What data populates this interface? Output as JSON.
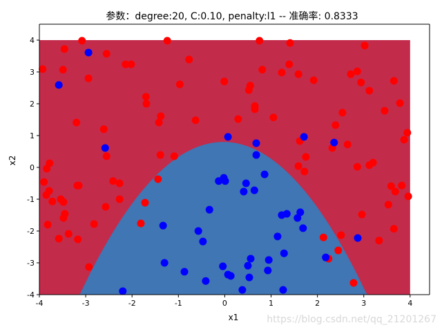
{
  "chart_data": {
    "type": "scatter",
    "title": "参数：degree:20, C:0.10, penalty:l1 -- 准确率: 0.8333",
    "xlabel": "x1",
    "ylabel": "x2",
    "xlim": [
      -4,
      4.42
    ],
    "ylim": [
      -4,
      4.5
    ],
    "xticks": [
      "-4",
      "-3",
      "-2",
      "-1",
      "0",
      "1",
      "2",
      "3",
      "4"
    ],
    "yticks": [
      "-4",
      "-3",
      "-2",
      "-1",
      "0",
      "1",
      "2",
      "3",
      "4"
    ],
    "grid": false,
    "background_regions": {
      "region_extent": [
        -4,
        4
      ],
      "outer_color": "#c32b4b",
      "inner_color": "#3f76b3"
    },
    "series": [
      {
        "color": "#ff0000",
        "points": [
          [
            -3.08,
            3.98
          ],
          [
            -1.24,
            3.98
          ],
          [
            -3.46,
            3.72
          ],
          [
            -2.55,
            3.57
          ],
          [
            -2.14,
            3.24
          ],
          [
            -2.02,
            3.24
          ],
          [
            -0.77,
            3.39
          ],
          [
            -3.93,
            3.09
          ],
          [
            -3.49,
            3.07
          ],
          [
            -2.94,
            2.8
          ],
          [
            -0.97,
            2.61
          ],
          [
            -0.01,
            2.7
          ],
          [
            -1.7,
            2.22
          ],
          [
            -1.69,
            2.0
          ],
          [
            -1.38,
            1.61
          ],
          [
            -1.42,
            1.41
          ],
          [
            -3.2,
            1.41
          ],
          [
            -0.63,
            1.48
          ],
          [
            -2.61,
            1.2
          ],
          [
            -2.55,
            0.35
          ],
          [
            -1.39,
            0.39
          ],
          [
            -1.09,
            0.35
          ],
          [
            -3.78,
            0.13
          ],
          [
            0.75,
            3.98
          ],
          [
            1.41,
            3.91
          ],
          [
            3.02,
            3.83
          ],
          [
            0.81,
            3.07
          ],
          [
            1.39,
            3.24
          ],
          [
            1.23,
            2.98
          ],
          [
            1.59,
            2.93
          ],
          [
            1.92,
            2.74
          ],
          [
            2.72,
            2.93
          ],
          [
            2.86,
            3.02
          ],
          [
            2.94,
            2.67
          ],
          [
            3.12,
            2.41
          ],
          [
            3.65,
            2.72
          ],
          [
            3.78,
            2.02
          ],
          [
            3.45,
            1.78
          ],
          [
            0.55,
            2.57
          ],
          [
            0.52,
            2.43
          ],
          [
            0.65,
            1.93
          ],
          [
            0.65,
            1.83
          ],
          [
            0.29,
            1.52
          ],
          [
            1.05,
            1.57
          ],
          [
            2.54,
            1.72
          ],
          [
            2.39,
            1.33
          ],
          [
            3.94,
            1.09
          ],
          [
            3.87,
            0.87
          ],
          [
            1.62,
            0.83
          ],
          [
            1.75,
            0.33
          ],
          [
            2.32,
            0.61
          ],
          [
            2.65,
            0.72
          ],
          [
            3.2,
            0.15
          ],
          [
            3.12,
            0.07
          ],
          [
            2.86,
            0.02
          ],
          [
            1.59,
            0.04
          ],
          [
            1.72,
            -0.13
          ],
          [
            3.59,
            -0.59
          ],
          [
            3.82,
            -0.57
          ],
          [
            3.68,
            -0.76
          ],
          [
            3.96,
            -0.91
          ],
          [
            3.53,
            -1.17
          ],
          [
            2.96,
            -1.48
          ],
          [
            3.65,
            -1.93
          ],
          [
            3.33,
            -2.3
          ],
          [
            2.51,
            -2.13
          ],
          [
            2.13,
            -2.2
          ],
          [
            2.45,
            -2.61
          ],
          [
            2.24,
            -2.87
          ],
          [
            2.78,
            -3.63
          ],
          [
            -3.84,
            -0.04
          ],
          [
            -3.9,
            -0.46
          ],
          [
            -3.79,
            -0.74
          ],
          [
            -3.85,
            -0.87
          ],
          [
            -3.72,
            -1.07
          ],
          [
            -3.54,
            -1.0
          ],
          [
            -3.48,
            -1.09
          ],
          [
            -3.45,
            -1.46
          ],
          [
            -3.48,
            -1.59
          ],
          [
            -3.82,
            -1.8
          ],
          [
            -3.37,
            -2.09
          ],
          [
            -3.58,
            -2.24
          ],
          [
            -3.17,
            -2.26
          ],
          [
            -3.18,
            -0.57
          ],
          [
            -3.15,
            -0.57
          ],
          [
            -2.41,
            -0.43
          ],
          [
            -2.27,
            -0.5
          ],
          [
            -2.27,
            -1.0
          ],
          [
            -2.57,
            -1.24
          ],
          [
            -2.82,
            -1.78
          ],
          [
            -2.93,
            -3.13
          ],
          [
            -1.44,
            -0.37
          ],
          [
            -1.72,
            -1.11
          ],
          [
            -1.81,
            -1.76
          ]
        ]
      },
      {
        "color": "#0000ff",
        "points": [
          [
            -2.94,
            3.61
          ],
          [
            -3.58,
            2.59
          ],
          [
            -2.58,
            0.61
          ],
          [
            0.07,
            0.96
          ],
          [
            0.68,
            0.76
          ],
          [
            0.68,
            0.39
          ],
          [
            1.71,
            0.96
          ],
          [
            2.36,
            0.78
          ],
          [
            -0.13,
            -0.43
          ],
          [
            -0.02,
            -0.33
          ],
          [
            0.01,
            -0.43
          ],
          [
            -0.33,
            -1.33
          ],
          [
            -1.33,
            -1.83
          ],
          [
            -0.57,
            -2.0
          ],
          [
            -0.47,
            -2.33
          ],
          [
            -1.3,
            -3.0
          ],
          [
            -0.87,
            -3.28
          ],
          [
            -0.41,
            -3.57
          ],
          [
            -0.04,
            -3.11
          ],
          [
            -2.2,
            -3.89
          ],
          [
            0.07,
            -3.37
          ],
          [
            0.13,
            -3.41
          ],
          [
            0.86,
            -0.22
          ],
          [
            0.46,
            -0.5
          ],
          [
            0.41,
            -0.76
          ],
          [
            0.64,
            -0.72
          ],
          [
            1.23,
            -1.5
          ],
          [
            1.34,
            -1.46
          ],
          [
            1.63,
            -1.41
          ],
          [
            1.57,
            -1.59
          ],
          [
            1.69,
            -1.91
          ],
          [
            1.14,
            -2.17
          ],
          [
            1.28,
            -2.7
          ],
          [
            0.56,
            -2.87
          ],
          [
            0.5,
            -3.09
          ],
          [
            0.95,
            -2.91
          ],
          [
            0.93,
            -3.24
          ],
          [
            0.53,
            -3.46
          ],
          [
            0.38,
            -3.85
          ],
          [
            1.26,
            -3.85
          ],
          [
            2.18,
            -2.83
          ],
          [
            2.87,
            -2.22
          ]
        ]
      }
    ]
  },
  "watermark": "https://blog.csdn.net/qq_21201267"
}
